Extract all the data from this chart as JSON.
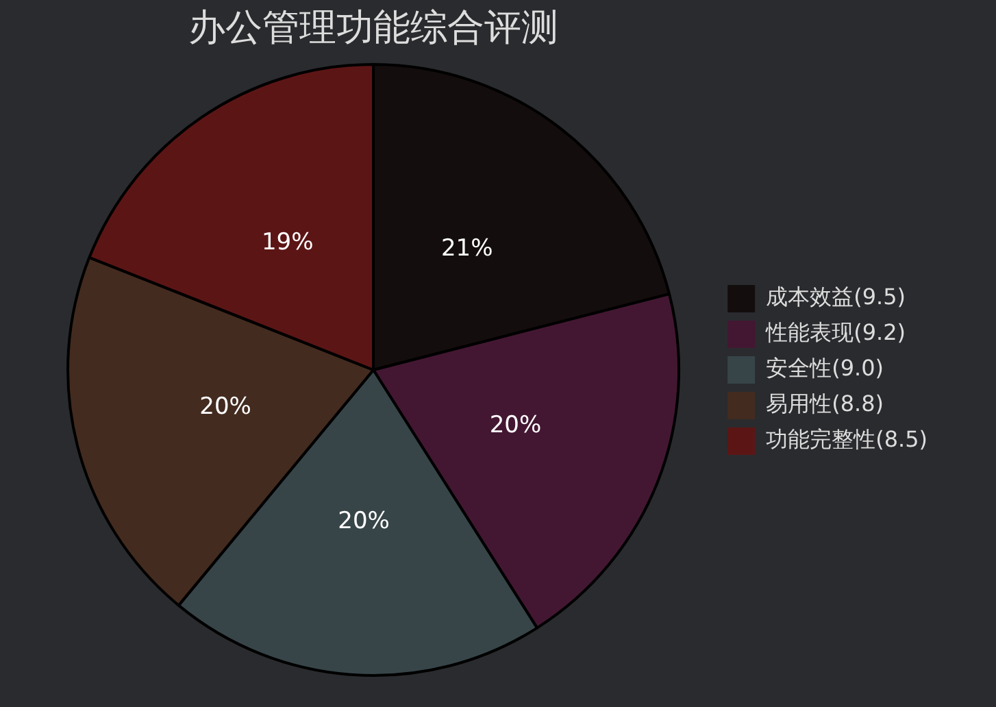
{
  "chart_data": {
    "type": "pie",
    "title": "办公管理功能综合评测",
    "categories": [
      "成本效益(9.5)",
      "性能表现(9.2)",
      "安全性(9.0)",
      "易用性(8.8)",
      "功能完整性(8.5)"
    ],
    "values": [
      21,
      20,
      20,
      20,
      19
    ],
    "colors": [
      "#140d0d",
      "#431732",
      "#374549",
      "#432b1f",
      "#5c1515"
    ],
    "value_labels": [
      "21%",
      "20%",
      "20%",
      "20%",
      "19%"
    ],
    "legend": "right"
  }
}
